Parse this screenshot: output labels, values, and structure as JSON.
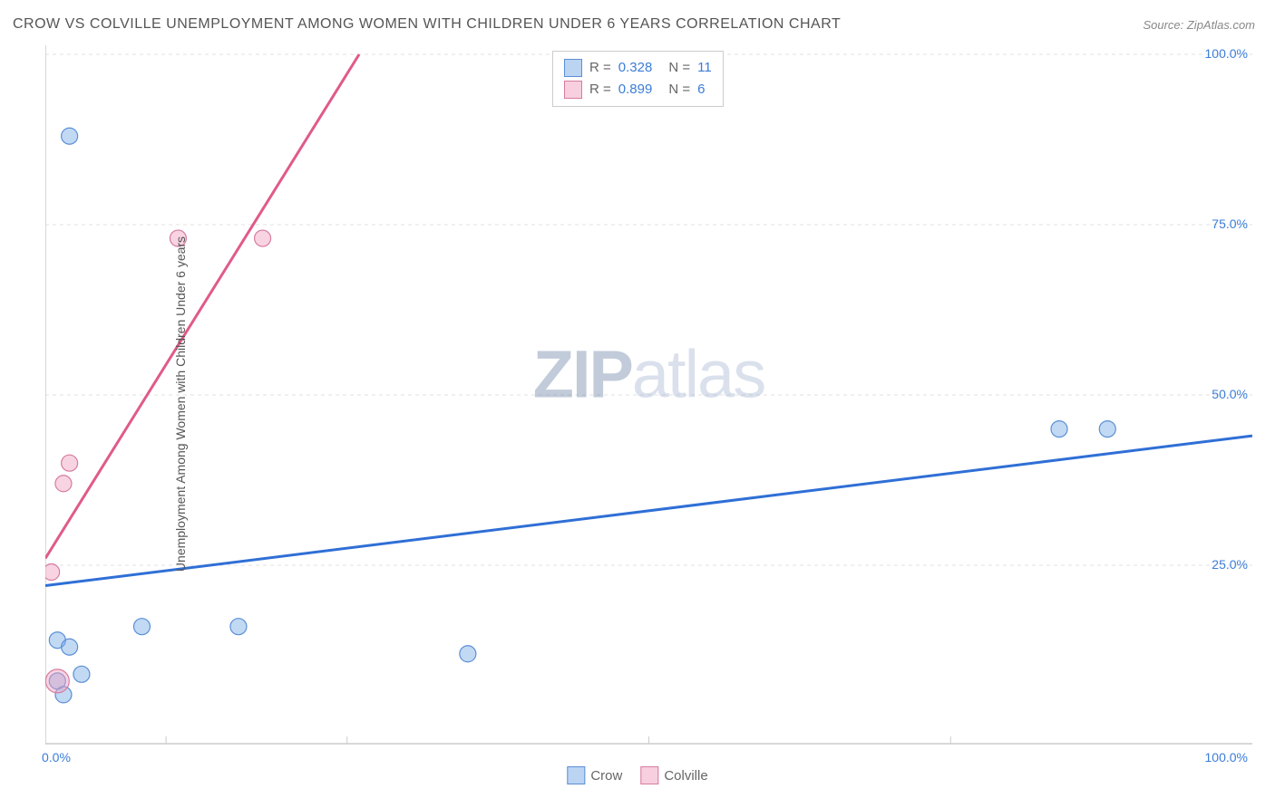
{
  "title": "CROW VS COLVILLE UNEMPLOYMENT AMONG WOMEN WITH CHILDREN UNDER 6 YEARS CORRELATION CHART",
  "source": "Source: ZipAtlas.com",
  "y_axis_label": "Unemployment Among Women with Children Under 6 years",
  "watermark": {
    "zip": "ZIP",
    "atlas": "atlas"
  },
  "chart": {
    "type": "scatter",
    "xlim": [
      0,
      100
    ],
    "ylim": [
      0,
      100
    ],
    "x_ticks": [
      0,
      100
    ],
    "x_tick_labels": [
      "0.0%",
      "100.0%"
    ],
    "x_minor_tick_positions": [
      10,
      25,
      50,
      75
    ],
    "y_ticks": [
      25,
      50,
      75,
      100
    ],
    "y_tick_labels": [
      "25.0%",
      "50.0%",
      "75.0%",
      "100.0%"
    ],
    "grid_color": "#e0e0e0",
    "axis_color": "#cccccc",
    "background_color": "#ffffff",
    "series": [
      {
        "name": "Crow",
        "color_fill": "rgba(120,170,230,0.45)",
        "color_stroke": "#5a8fd6",
        "R": "0.328",
        "N": "11",
        "points": [
          {
            "x": 2,
            "y": 88,
            "r": 9
          },
          {
            "x": 84,
            "y": 45,
            "r": 9
          },
          {
            "x": 88,
            "y": 45,
            "r": 9
          },
          {
            "x": 35,
            "y": 12,
            "r": 9
          },
          {
            "x": 16,
            "y": 16,
            "r": 9
          },
          {
            "x": 8,
            "y": 16,
            "r": 9
          },
          {
            "x": 1,
            "y": 14,
            "r": 9
          },
          {
            "x": 2,
            "y": 13,
            "r": 9
          },
          {
            "x": 3,
            "y": 9,
            "r": 9
          },
          {
            "x": 1,
            "y": 8,
            "r": 9
          },
          {
            "x": 1.5,
            "y": 6,
            "r": 9
          }
        ],
        "regression": {
          "x1": 0,
          "y1": 22,
          "x2": 100,
          "y2": 44,
          "color": "#2f6fd6",
          "width": 3
        }
      },
      {
        "name": "Colville",
        "color_fill": "rgba(240,160,190,0.45)",
        "color_stroke": "#d67ba0",
        "R": "0.899",
        "N": "6",
        "points": [
          {
            "x": 11,
            "y": 73,
            "r": 9
          },
          {
            "x": 18,
            "y": 73,
            "r": 9
          },
          {
            "x": 2,
            "y": 40,
            "r": 9
          },
          {
            "x": 1.5,
            "y": 37,
            "r": 9
          },
          {
            "x": 0.5,
            "y": 24,
            "r": 9
          },
          {
            "x": 1,
            "y": 8,
            "r": 13
          }
        ],
        "regression": {
          "x1": 0,
          "y1": 26,
          "x2": 26,
          "y2": 100,
          "color": "#e05a8a",
          "width": 3
        }
      }
    ]
  },
  "stats_legend": {
    "rows": [
      {
        "swatch": "blue",
        "R_label": "R =",
        "R": "0.328",
        "N_label": "N =",
        "N": "11"
      },
      {
        "swatch": "pink",
        "R_label": "R =",
        "R": "0.899",
        "N_label": "N =",
        "N": "6"
      }
    ]
  },
  "bottom_legend": [
    {
      "swatch": "blue",
      "label": "Crow"
    },
    {
      "swatch": "pink",
      "label": "Colville"
    }
  ]
}
